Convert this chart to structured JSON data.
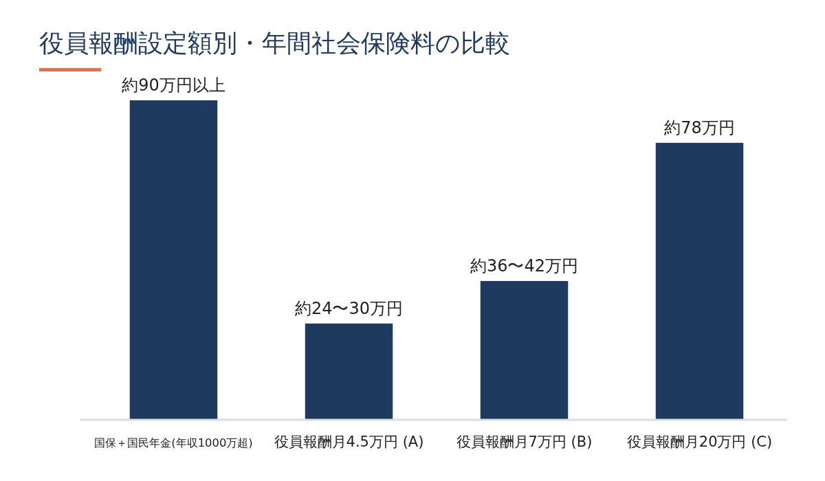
{
  "chart_data": {
    "type": "bar",
    "title": "役員報酬設定額別・年間社会保険料の比較",
    "categories": [
      "国保＋国民年金(年収1000万超)",
      "役員報酬月4.5万円 (A)",
      "役員報酬月7万円 (B)",
      "役員報酬月20万円 (C)"
    ],
    "values": [
      90,
      27,
      39,
      78
    ],
    "value_labels": [
      "約90万円以上",
      "約24〜30万円",
      "約36〜42万円",
      "約78万円"
    ],
    "color": "#1f3a5f"
  }
}
